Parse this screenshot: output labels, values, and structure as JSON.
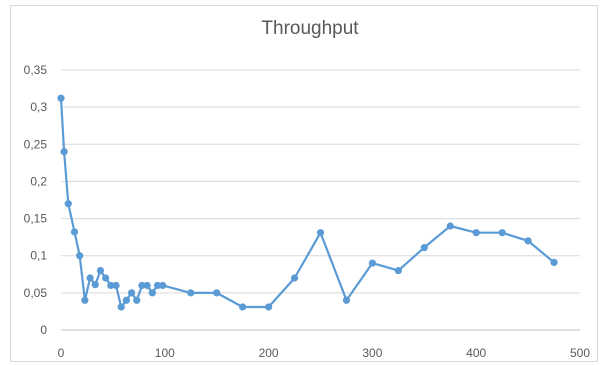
{
  "chart_data": {
    "type": "line",
    "title": "Throughput",
    "xlabel": "",
    "ylabel": "",
    "xlim": [
      0,
      500
    ],
    "ylim": [
      0,
      0.35
    ],
    "xticks": [
      0,
      100,
      200,
      300,
      400,
      500
    ],
    "xtick_labels": [
      "0",
      "100",
      "200",
      "300",
      "400",
      "500"
    ],
    "yticks": [
      0,
      0.05,
      0.1,
      0.15,
      0.2,
      0.25,
      0.3,
      0.35
    ],
    "ytick_labels": [
      "0",
      "0,05",
      "0,1",
      "0,15",
      "0,2",
      "0,25",
      "0,3",
      "0,35"
    ],
    "grid": "horizontal",
    "legend": "none",
    "series": [
      {
        "color": "#5b9bd5",
        "x": [
          0,
          3,
          7,
          13,
          18,
          23,
          28,
          33,
          38,
          43,
          48,
          53,
          58,
          63,
          68,
          73,
          78,
          83,
          88,
          93,
          98,
          125,
          150,
          175,
          200,
          225,
          250,
          275,
          300,
          325,
          350,
          375,
          400,
          425,
          450,
          475
        ],
        "y": [
          0.312,
          0.24,
          0.17,
          0.132,
          0.1,
          0.04,
          0.07,
          0.061,
          0.08,
          0.07,
          0.06,
          0.06,
          0.031,
          0.04,
          0.05,
          0.04,
          0.06,
          0.06,
          0.05,
          0.06,
          0.06,
          0.05,
          0.05,
          0.031,
          0.031,
          0.07,
          0.131,
          0.04,
          0.09,
          0.08,
          0.111,
          0.14,
          0.131,
          0.131,
          0.12,
          0.091
        ]
      }
    ]
  }
}
